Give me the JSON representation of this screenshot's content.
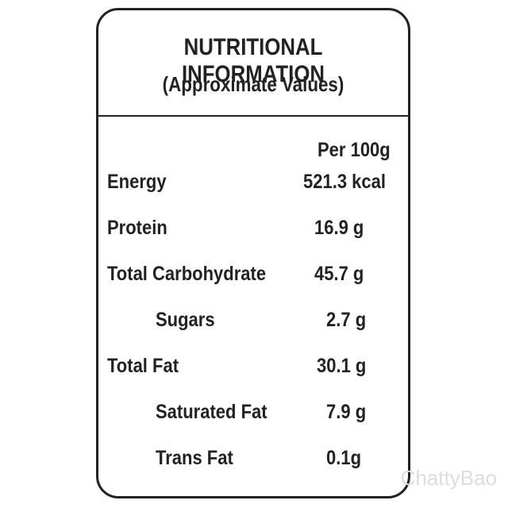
{
  "header": {
    "title": "NUTRITIONAL INFORMATION",
    "subtitle": "(Approximate Values)"
  },
  "table": {
    "column_header": "Per 100g",
    "rows": [
      [
        "Energy",
        "521.3 kcal"
      ],
      [
        "Protein",
        "16.9 g"
      ],
      [
        "Total Carbohydrate",
        "45.7 g"
      ],
      [
        "Sugars",
        "2.7 g"
      ],
      [
        "Total Fat",
        "30.1 g"
      ],
      [
        "Saturated Fat",
        "7.9 g"
      ],
      [
        "Trans Fat",
        "0.1g"
      ]
    ]
  },
  "watermark": "ChattyBao"
}
